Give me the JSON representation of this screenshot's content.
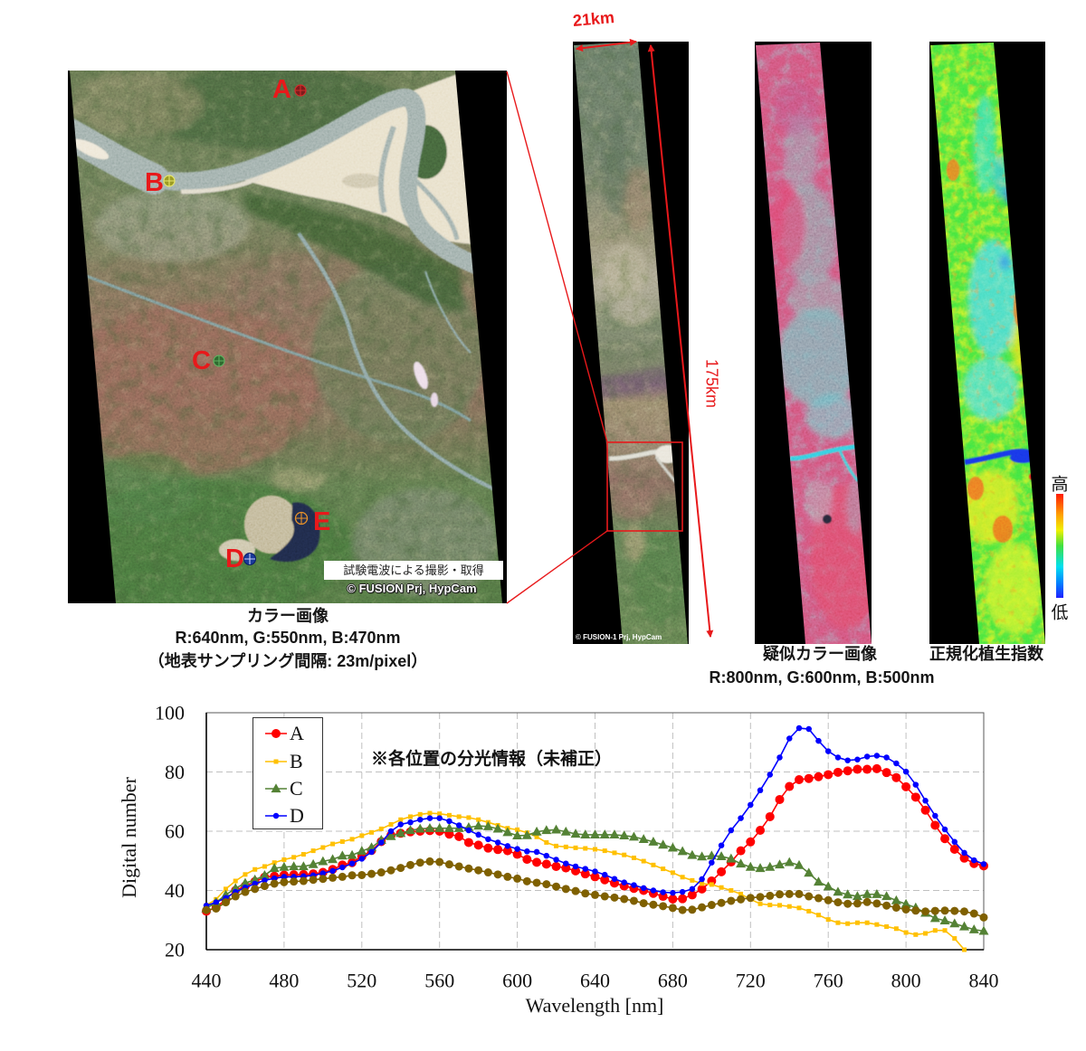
{
  "figure": {
    "color_image": {
      "title": "カラー画像",
      "bands": "R:640nm, G:550nm, B:470nm",
      "sampling": "（地表サンプリング間隔: 23m/pixel）",
      "notice": "試験電波による撮影・取得",
      "credit": "© FUSION Prj, HypCam",
      "label_color": "#e8191b",
      "points": [
        {
          "label": "A",
          "marker_fill": "#7d1c1c",
          "marker_stroke": "#d42b2b"
        },
        {
          "label": "B",
          "marker_fill": "#9c9c24",
          "marker_stroke": "#e6e66e"
        },
        {
          "label": "C",
          "marker_fill": "#2f6a2f",
          "marker_stroke": "#62b062"
        },
        {
          "label": "D",
          "marker_fill": "#1a3a9a",
          "marker_stroke": "#c8d0f4"
        },
        {
          "label": "E",
          "marker_fill": "none",
          "marker_stroke": "#e8922a"
        }
      ]
    },
    "overview_strip": {
      "credit": "© FUSION-1  Prj, HypCam",
      "swath_label": "21km",
      "length_label": "175km",
      "annotation_color": "#e8191b"
    },
    "false_color_image": {
      "title": "疑似カラー画像",
      "bands": "R:800nm, G:600nm, B:500nm"
    },
    "ndvi_image": {
      "title": "正規化植生指数",
      "scale_high": "高",
      "scale_low": "低"
    }
  },
  "chart_data": {
    "type": "line",
    "title": "",
    "annotation": "※各位置の分光情報（未補正）",
    "xlabel": "Wavelength [nm]",
    "ylabel": "Digital number",
    "xlim": [
      440,
      840
    ],
    "ylim": [
      20,
      100
    ],
    "xticks": [
      440,
      480,
      520,
      560,
      600,
      640,
      680,
      720,
      760,
      800,
      840
    ],
    "yticks": [
      20,
      40,
      60,
      80,
      100
    ],
    "grid": true,
    "legend_position": "upper-left",
    "legend_entries": [
      "A",
      "B",
      "C",
      "D"
    ],
    "x": [
      440,
      445,
      450,
      455,
      460,
      465,
      470,
      475,
      480,
      485,
      490,
      495,
      500,
      505,
      510,
      515,
      520,
      525,
      530,
      535,
      540,
      545,
      550,
      555,
      560,
      565,
      570,
      575,
      580,
      585,
      590,
      595,
      600,
      605,
      610,
      615,
      620,
      625,
      630,
      635,
      640,
      645,
      650,
      655,
      660,
      665,
      670,
      675,
      680,
      685,
      690,
      695,
      700,
      705,
      710,
      715,
      720,
      725,
      730,
      735,
      740,
      745,
      750,
      755,
      760,
      765,
      770,
      775,
      780,
      785,
      790,
      795,
      800,
      805,
      810,
      815,
      820,
      825,
      830,
      835,
      840
    ],
    "series": [
      {
        "name": "A",
        "color": "#ff0000",
        "marker": "circle",
        "marker_size": 10,
        "in_legend": true,
        "values": [
          33.0,
          34.2,
          37.0,
          40.0,
          41.5,
          43.0,
          44.5,
          44.8,
          45.2,
          45.3,
          45.4,
          45.6,
          46.1,
          47.1,
          48.6,
          49.4,
          51.5,
          53.5,
          56.5,
          58.6,
          59.3,
          59.8,
          60.0,
          60.2,
          60.0,
          59.0,
          58.2,
          56.2,
          55.3,
          54.3,
          53.8,
          53.4,
          52.2,
          50.5,
          49.5,
          48.9,
          48.1,
          47.6,
          46.6,
          45.6,
          44.6,
          43.6,
          42.5,
          41.5,
          40.7,
          40.0,
          39.0,
          38.0,
          37.1,
          37.2,
          38.5,
          40.5,
          43.2,
          46.3,
          49.6,
          53.4,
          56.4,
          60.3,
          64.9,
          70.7,
          75.1,
          77.4,
          77.8,
          78.4,
          79.1,
          79.9,
          80.4,
          80.9,
          80.9,
          81.1,
          79.8,
          78.1,
          75.0,
          71.5,
          67.1,
          62.0,
          57.5,
          53.9,
          50.9,
          49.1,
          48.3
        ]
      },
      {
        "name": "B",
        "color": "#ffc000",
        "marker": "square",
        "marker_size": 5,
        "in_legend": true,
        "values": [
          35.0,
          37.0,
          40.5,
          43.2,
          45.4,
          47.1,
          48.1,
          49.4,
          50.4,
          51.2,
          52.2,
          53.4,
          54.5,
          55.7,
          56.5,
          57.3,
          58.5,
          59.6,
          60.8,
          62.3,
          63.9,
          64.9,
          65.7,
          66.1,
          65.9,
          65.4,
          64.9,
          64.6,
          63.9,
          63.0,
          62.0,
          61.0,
          60.5,
          59.5,
          58.1,
          56.2,
          55.0,
          54.7,
          54.4,
          54.2,
          53.9,
          53.4,
          52.7,
          52.0,
          51.0,
          49.9,
          48.6,
          47.3,
          46.0,
          44.5,
          43.4,
          42.3,
          42.0,
          41.0,
          40.0,
          38.8,
          37.0,
          35.5,
          35.1,
          35.0,
          34.6,
          34.1,
          33.0,
          31.7,
          30.2,
          29.1,
          28.8,
          29.1,
          29.1,
          28.5,
          27.8,
          27.1,
          25.8,
          25.1,
          25.5,
          26.5,
          26.5,
          23.8,
          20.0,
          null,
          null
        ]
      },
      {
        "name": "C",
        "color": "#548235",
        "marker": "triangle",
        "marker_size": 11,
        "in_legend": true,
        "values": [
          33.9,
          36.0,
          38.5,
          40.7,
          42.5,
          43.6,
          45.1,
          47.5,
          47.9,
          48.1,
          48.1,
          48.8,
          49.8,
          50.5,
          51.7,
          51.9,
          53.3,
          54.5,
          57.0,
          58.3,
          59.3,
          60.3,
          60.8,
          61.0,
          61.0,
          61.0,
          61.0,
          61.3,
          61.8,
          61.6,
          60.8,
          59.6,
          58.5,
          58.6,
          59.8,
          60.3,
          60.5,
          59.8,
          59.1,
          58.8,
          58.8,
          58.8,
          58.8,
          58.5,
          58.1,
          57.3,
          56.4,
          55.4,
          54.4,
          53.2,
          51.9,
          51.4,
          51.7,
          51.5,
          50.7,
          49.0,
          47.9,
          47.5,
          47.9,
          48.7,
          49.5,
          48.5,
          45.9,
          42.9,
          41.3,
          39.5,
          38.6,
          38.0,
          38.7,
          38.7,
          38.0,
          36.6,
          35.4,
          34.2,
          32.4,
          30.6,
          29.8,
          28.8,
          27.8,
          26.8,
          26.3
        ]
      },
      {
        "name": "D",
        "color": "#0000ff",
        "marker": "circle",
        "marker_size": 6.5,
        "in_legend": true,
        "values": [
          34.9,
          36.0,
          37.5,
          39.5,
          41.0,
          42.3,
          43.4,
          44.1,
          44.6,
          44.6,
          44.8,
          45.1,
          45.8,
          46.6,
          47.8,
          49.1,
          50.7,
          53.0,
          56.2,
          60.0,
          62.3,
          63.0,
          63.9,
          64.4,
          64.4,
          63.4,
          62.0,
          60.3,
          58.8,
          57.3,
          56.2,
          55.0,
          54.0,
          53.2,
          53.0,
          51.7,
          50.4,
          49.1,
          48.1,
          47.3,
          46.4,
          45.3,
          43.9,
          42.7,
          41.8,
          40.8,
          40.0,
          39.4,
          39.2,
          39.5,
          40.5,
          43.8,
          49.4,
          55.2,
          60.3,
          64.4,
          68.9,
          73.8,
          79.1,
          84.9,
          91.3,
          94.8,
          94.5,
          90.5,
          87.0,
          84.9,
          83.9,
          84.2,
          85.2,
          85.5,
          84.9,
          82.9,
          80.1,
          75.7,
          70.3,
          65.2,
          60.6,
          56.4,
          52.7,
          50.2,
          48.9
        ]
      },
      {
        "name": "E",
        "color": "#7f6000",
        "marker": "circle",
        "marker_size": 9,
        "in_legend": false,
        "values": [
          33.4,
          33.9,
          36.0,
          38.0,
          39.5,
          40.5,
          41.5,
          42.3,
          42.8,
          43.0,
          43.2,
          43.6,
          43.9,
          44.3,
          44.6,
          45.1,
          45.2,
          45.6,
          46.1,
          46.8,
          47.6,
          48.6,
          49.4,
          49.8,
          49.6,
          48.8,
          48.1,
          47.4,
          46.8,
          46.1,
          45.4,
          44.6,
          44.0,
          43.1,
          42.6,
          42.1,
          41.3,
          40.5,
          39.8,
          39.0,
          38.5,
          38.0,
          37.6,
          37.1,
          36.5,
          35.7,
          35.2,
          34.7,
          34.1,
          33.4,
          33.5,
          34.3,
          35.1,
          35.8,
          36.5,
          37.0,
          37.5,
          37.8,
          38.2,
          38.7,
          38.8,
          38.8,
          38.0,
          37.4,
          36.7,
          36.0,
          35.5,
          35.6,
          36.1,
          35.6,
          34.9,
          34.2,
          33.6,
          33.2,
          32.9,
          33.1,
          33.2,
          33.1,
          32.9,
          32.2,
          30.9
        ]
      }
    ]
  }
}
